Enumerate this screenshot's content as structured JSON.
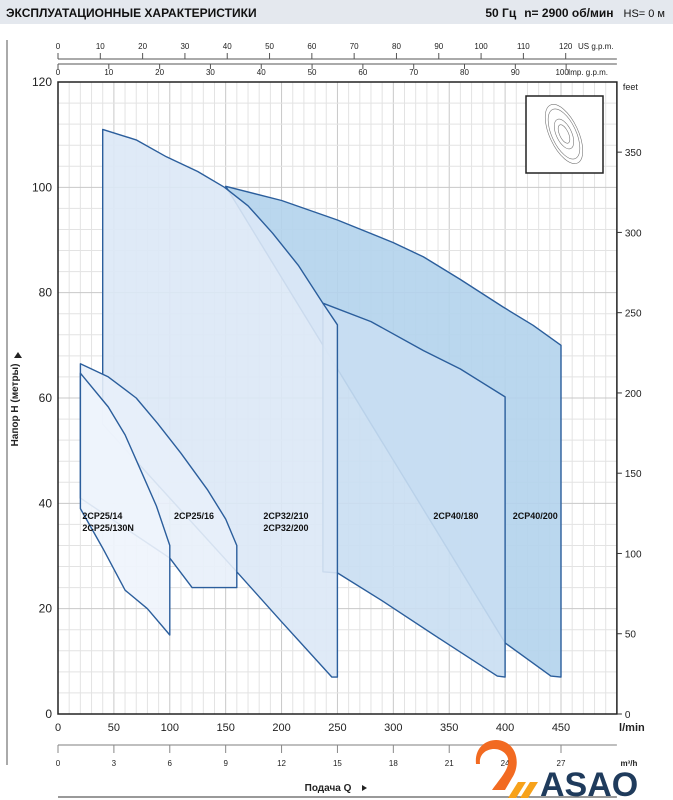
{
  "header": {
    "title": "ЭКСПЛУАТАЦИОННЫЕ ХАРАКТЕРИСТИКИ",
    "frequency": "50 Гц",
    "speed": "n= 2900 об/мин",
    "hs": "HS= 0 м"
  },
  "logo": {
    "text": "ASAO",
    "colors": {
      "mark": "#f26a21",
      "text": "#1f3b5c"
    }
  },
  "chart_data": {
    "type": "area",
    "title": "",
    "xlabel": "Подача Q",
    "ylabel": "Напор H (метры)",
    "x_unit": "l/min",
    "xlim": [
      0,
      500
    ],
    "ylim": [
      0,
      120
    ],
    "grid": true,
    "x_ticks": [
      0,
      50,
      100,
      150,
      200,
      250,
      300,
      350,
      400,
      450
    ],
    "y_ticks": [
      0,
      20,
      40,
      60,
      80,
      100,
      120
    ],
    "secondary_axes": {
      "us_gpm": {
        "label": "US g.p.m.",
        "ticks": [
          0,
          10,
          20,
          30,
          40,
          50,
          60,
          70,
          80,
          90,
          100,
          110,
          120
        ]
      },
      "imp_gpm": {
        "label": "Imp. g.p.m.",
        "ticks": [
          0,
          10,
          20,
          30,
          40,
          50,
          60,
          70,
          80,
          90,
          100
        ]
      },
      "m3h": {
        "label": "m³/h",
        "ticks": [
          0,
          3,
          6,
          9,
          12,
          15,
          18,
          21,
          24,
          27
        ]
      },
      "feet": {
        "label": "feet",
        "ticks": [
          0,
          50,
          100,
          150,
          200,
          250,
          300,
          350
        ]
      }
    },
    "colors": {
      "outline": "#2b5e9c",
      "fill_light": "#edf3fb",
      "fill_mid": "#dce8f6",
      "fill_dark": "#b3d3ec",
      "grid": "#cfcfcf"
    },
    "series": [
      {
        "name": "2CP40/200",
        "fill": "#b3d3ec",
        "top": [
          [
            150,
            100.2
          ],
          [
            200,
            97.5
          ],
          [
            250,
            93.8
          ],
          [
            300,
            89.5
          ],
          [
            327,
            86.8
          ],
          [
            360,
            82.5
          ],
          [
            398,
            77.3
          ],
          [
            425,
            73.8
          ],
          [
            450,
            70
          ]
        ],
        "bottom": [
          [
            450,
            7
          ],
          [
            441,
            7.2
          ],
          [
            400,
            13.5
          ]
        ]
      },
      {
        "name": "2CP40/180",
        "fill": "#c9def2",
        "top": [
          [
            237,
            78
          ],
          [
            280,
            74.5
          ],
          [
            327,
            69
          ],
          [
            360,
            65.5
          ],
          [
            400,
            60.2
          ]
        ],
        "bottom": [
          [
            400,
            7
          ],
          [
            393,
            7.2
          ],
          [
            340,
            14.5
          ],
          [
            290,
            21.5
          ],
          [
            250,
            26.8
          ],
          [
            237,
            27
          ]
        ]
      },
      {
        "name": "2CP32/210 / 2CP32/200",
        "fill": "#dce8f6",
        "top": [
          [
            40,
            111
          ],
          [
            70,
            109
          ],
          [
            97,
            105.8
          ],
          [
            125,
            103
          ],
          [
            149,
            100
          ],
          [
            170,
            96.5
          ],
          [
            192,
            91.3
          ],
          [
            215,
            85.2
          ],
          [
            237,
            78
          ],
          [
            250,
            73.9
          ]
        ],
        "bottom": [
          [
            250,
            7
          ],
          [
            245,
            7
          ],
          [
            200,
            17.5
          ],
          [
            160,
            27
          ],
          [
            40,
            55
          ]
        ]
      },
      {
        "name": "2CP25/16",
        "fill": "#e8f0fa",
        "top": [
          [
            20,
            66.5
          ],
          [
            45,
            64
          ],
          [
            70,
            60
          ],
          [
            89,
            55.2
          ],
          [
            110,
            49.5
          ],
          [
            134,
            42.5
          ],
          [
            150,
            37
          ],
          [
            160,
            32
          ]
        ],
        "bottom": [
          [
            160,
            24
          ],
          [
            120,
            24
          ],
          [
            100,
            29.6
          ],
          [
            20,
            41
          ]
        ]
      },
      {
        "name": "2CP25/14 / 2CP25/130N",
        "fill": "#eef4fc",
        "top": [
          [
            20,
            64.7
          ],
          [
            45,
            58.3
          ],
          [
            60,
            53
          ],
          [
            74,
            46.3
          ],
          [
            88,
            39.5
          ],
          [
            100,
            32
          ]
        ],
        "bottom": [
          [
            100,
            15
          ],
          [
            80,
            20
          ],
          [
            60,
            23.5
          ],
          [
            40,
            31.5
          ],
          [
            20,
            39
          ]
        ]
      }
    ],
    "labels": [
      {
        "text": [
          "2CP25/14",
          "2CP25/130N"
        ],
        "at": [
          20,
          37
        ]
      },
      {
        "text": [
          "2CP25/16"
        ],
        "at": [
          102,
          37
        ]
      },
      {
        "text": [
          "2CP32/210",
          "2CP32/200"
        ],
        "at": [
          182,
          37
        ]
      },
      {
        "text": [
          "2CP40/180"
        ],
        "at": [
          334,
          37
        ]
      },
      {
        "text": [
          "2CP40/200"
        ],
        "at": [
          405,
          37
        ]
      }
    ]
  }
}
